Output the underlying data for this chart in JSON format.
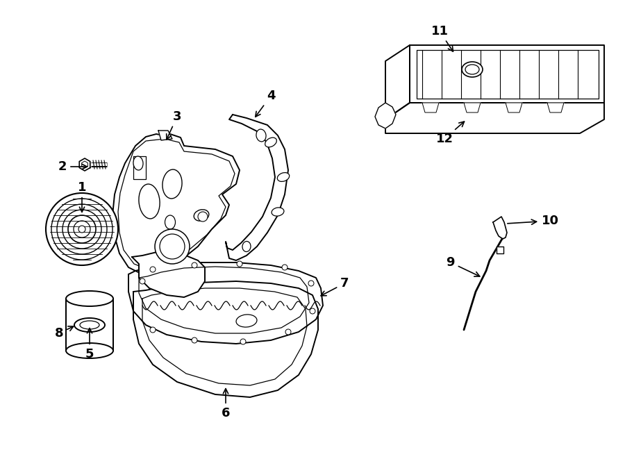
{
  "bg_color": "#ffffff",
  "line_color": "#000000",
  "fig_width": 9.0,
  "fig_height": 6.61,
  "dpi": 100,
  "font_size_labels": 13
}
